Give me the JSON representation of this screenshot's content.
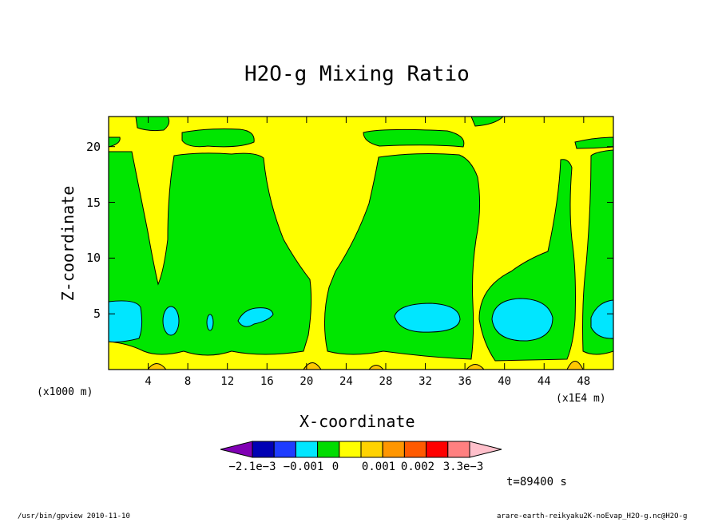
{
  "chart_data": {
    "type": "contour",
    "title": "H2O-g Mixing Ratio",
    "xlabel": "X-coordinate",
    "ylabel": "Z-coordinate",
    "x_unit_left": "(x1000 m)",
    "x_unit_right": "(x1E4 m)",
    "x_ticks": [
      4,
      8,
      12,
      16,
      20,
      24,
      28,
      32,
      36,
      40,
      44,
      48
    ],
    "xlim": [
      0,
      51
    ],
    "y_ticks": [
      5,
      10,
      15,
      20
    ],
    "ylim": [
      0,
      22.7
    ],
    "time_label": "t=89400 s",
    "colorbar": {
      "colors": [
        "#8000b4",
        "#0000b4",
        "#1e3cff",
        "#00e6ff",
        "#00dc00",
        "#ffff00",
        "#ffd200",
        "#ff9600",
        "#ff5a00",
        "#ff0000",
        "#ff8080",
        "#ffc0cb"
      ],
      "labels": [
        "−2.1e−3",
        "−0.001",
        "0",
        "0.001",
        "0.002",
        "3.3e−3"
      ]
    },
    "dominant_levels": {
      "background": "yellow",
      "columns": "green",
      "cores": "cyan",
      "base_bumps": "orange"
    }
  },
  "footer": {
    "left": "/usr/bin/gpview   2010-11-10",
    "right": "arare-earth-reikyaku2K-noEvap_H2O-g.nc@H2O-g"
  },
  "colors": {
    "yellow": "#ffff00",
    "green": "#00e600",
    "cyan": "#00e6ff",
    "orange": "#ffc800"
  }
}
